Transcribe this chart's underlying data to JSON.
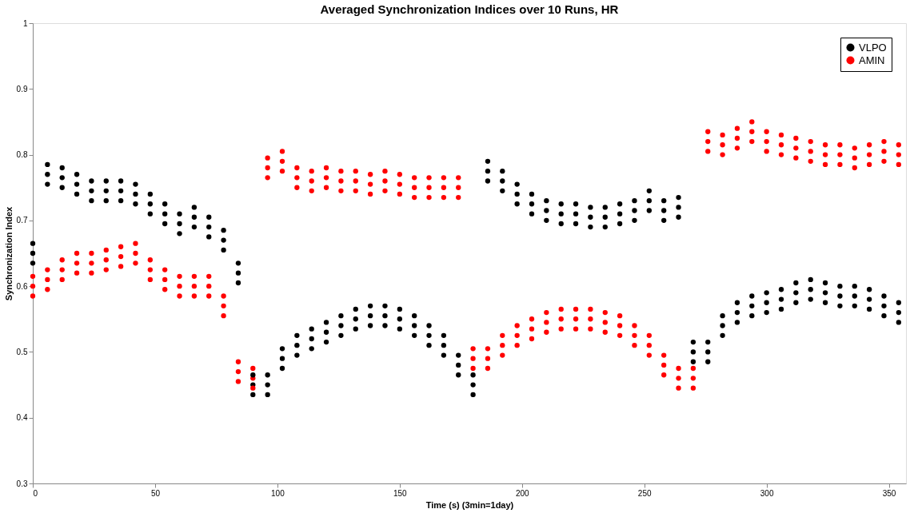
{
  "chart_data": {
    "type": "scatter",
    "title": "Averaged Synchronization Indices over 10 Runs, HR",
    "xlabel": "Time (s) (3min=1day)",
    "ylabel": "Synchronization Index",
    "x": [
      0,
      6,
      12,
      18,
      24,
      30,
      36,
      42,
      48,
      54,
      60,
      66,
      72,
      78,
      84,
      90,
      96,
      102,
      108,
      114,
      120,
      126,
      132,
      138,
      144,
      150,
      156,
      162,
      168,
      174,
      180,
      186,
      192,
      198,
      204,
      210,
      216,
      222,
      228,
      234,
      240,
      246,
      252,
      258,
      264,
      270,
      276,
      282,
      288,
      294,
      300,
      306,
      312,
      318,
      324,
      330,
      336,
      342,
      348,
      354
    ],
    "series": [
      {
        "name": "VLPO",
        "color": "#000000",
        "values": [
          0.65,
          0.77,
          0.765,
          0.755,
          0.745,
          0.745,
          0.745,
          0.74,
          0.725,
          0.71,
          0.695,
          0.705,
          0.69,
          0.67,
          0.62,
          0.45,
          0.45,
          0.49,
          0.51,
          0.52,
          0.53,
          0.54,
          0.55,
          0.555,
          0.555,
          0.55,
          0.54,
          0.525,
          0.51,
          0.48,
          0.45,
          0.775,
          0.76,
          0.74,
          0.725,
          0.715,
          0.71,
          0.71,
          0.705,
          0.705,
          0.71,
          0.715,
          0.73,
          0.715,
          0.72,
          0.5,
          0.5,
          0.54,
          0.56,
          0.57,
          0.575,
          0.58,
          0.59,
          0.595,
          0.59,
          0.585,
          0.585,
          0.58,
          0.57,
          0.56
        ]
      },
      {
        "name": "AMIN",
        "color": "#ff0000",
        "values": [
          0.6,
          0.61,
          0.625,
          0.635,
          0.635,
          0.64,
          0.645,
          0.65,
          0.625,
          0.61,
          0.6,
          0.6,
          0.6,
          0.57,
          0.47,
          0.46,
          0.78,
          0.79,
          0.765,
          0.76,
          0.765,
          0.76,
          0.76,
          0.755,
          0.76,
          0.755,
          0.75,
          0.75,
          0.75,
          0.75,
          0.49,
          0.49,
          0.51,
          0.525,
          0.535,
          0.545,
          0.55,
          0.55,
          0.55,
          0.545,
          0.54,
          0.525,
          0.51,
          0.48,
          0.46,
          0.46,
          0.82,
          0.815,
          0.825,
          0.835,
          0.82,
          0.815,
          0.81,
          0.805,
          0.8,
          0.8,
          0.795,
          0.8,
          0.805,
          0.8
        ]
      },
      {
        "color": "#000000",
        "values": [
          0.665,
          0.785,
          0.78,
          0.77,
          0.76,
          0.76,
          0.76,
          0.755,
          0.74,
          0.725,
          0.71,
          0.72,
          0.705,
          0.685,
          0.635,
          0.465,
          0.465,
          0.505,
          0.525,
          0.535,
          0.545,
          0.555,
          0.565,
          0.57,
          0.57,
          0.565,
          0.555,
          0.54,
          0.525,
          0.495,
          0.465,
          0.79,
          0.775,
          0.755,
          0.74,
          0.73,
          0.725,
          0.725,
          0.72,
          0.72,
          0.725,
          0.73,
          0.745,
          0.73,
          0.735,
          0.515,
          0.515,
          0.555,
          0.575,
          0.585,
          0.59,
          0.595,
          0.605,
          0.61,
          0.605,
          0.6,
          0.6,
          0.595,
          0.585,
          0.575
        ]
      },
      {
        "color": "#000000",
        "values": [
          0.635,
          0.755,
          0.75,
          0.74,
          0.73,
          0.73,
          0.73,
          0.725,
          0.71,
          0.695,
          0.68,
          0.69,
          0.675,
          0.655,
          0.605,
          0.435,
          0.435,
          0.475,
          0.495,
          0.505,
          0.515,
          0.525,
          0.535,
          0.54,
          0.54,
          0.535,
          0.525,
          0.51,
          0.495,
          0.465,
          0.435,
          0.76,
          0.745,
          0.725,
          0.71,
          0.7,
          0.695,
          0.695,
          0.69,
          0.69,
          0.695,
          0.7,
          0.715,
          0.7,
          0.705,
          0.485,
          0.485,
          0.525,
          0.545,
          0.555,
          0.56,
          0.565,
          0.575,
          0.58,
          0.575,
          0.57,
          0.57,
          0.565,
          0.555,
          0.545
        ]
      },
      {
        "color": "#ff0000",
        "values": [
          0.615,
          0.625,
          0.64,
          0.65,
          0.65,
          0.655,
          0.66,
          0.665,
          0.64,
          0.625,
          0.615,
          0.615,
          0.615,
          0.585,
          0.485,
          0.475,
          0.795,
          0.805,
          0.78,
          0.775,
          0.78,
          0.775,
          0.775,
          0.77,
          0.775,
          0.77,
          0.765,
          0.765,
          0.765,
          0.765,
          0.505,
          0.505,
          0.525,
          0.54,
          0.55,
          0.56,
          0.565,
          0.565,
          0.565,
          0.56,
          0.555,
          0.54,
          0.525,
          0.495,
          0.475,
          0.475,
          0.835,
          0.83,
          0.84,
          0.85,
          0.835,
          0.83,
          0.825,
          0.82,
          0.815,
          0.815,
          0.81,
          0.815,
          0.82,
          0.815
        ]
      },
      {
        "color": "#ff0000",
        "values": [
          0.585,
          0.595,
          0.61,
          0.62,
          0.62,
          0.625,
          0.63,
          0.635,
          0.61,
          0.595,
          0.585,
          0.585,
          0.585,
          0.555,
          0.455,
          0.445,
          0.765,
          0.775,
          0.75,
          0.745,
          0.75,
          0.745,
          0.745,
          0.74,
          0.745,
          0.74,
          0.735,
          0.735,
          0.735,
          0.735,
          0.475,
          0.475,
          0.495,
          0.51,
          0.52,
          0.53,
          0.535,
          0.535,
          0.535,
          0.53,
          0.525,
          0.51,
          0.495,
          0.465,
          0.445,
          0.445,
          0.805,
          0.8,
          0.81,
          0.82,
          0.805,
          0.8,
          0.795,
          0.79,
          0.785,
          0.785,
          0.78,
          0.785,
          0.79,
          0.785
        ]
      }
    ],
    "xlim": [
      0,
      357
    ],
    "xticks": [
      0,
      50,
      100,
      150,
      200,
      250,
      300,
      350
    ],
    "ylim": [
      0.3,
      1
    ],
    "yticks": [
      0.3,
      0.4,
      0.5,
      0.6,
      0.7,
      0.8,
      0.9,
      1
    ],
    "marker": "circle",
    "legend": "top right",
    "grid": false
  }
}
